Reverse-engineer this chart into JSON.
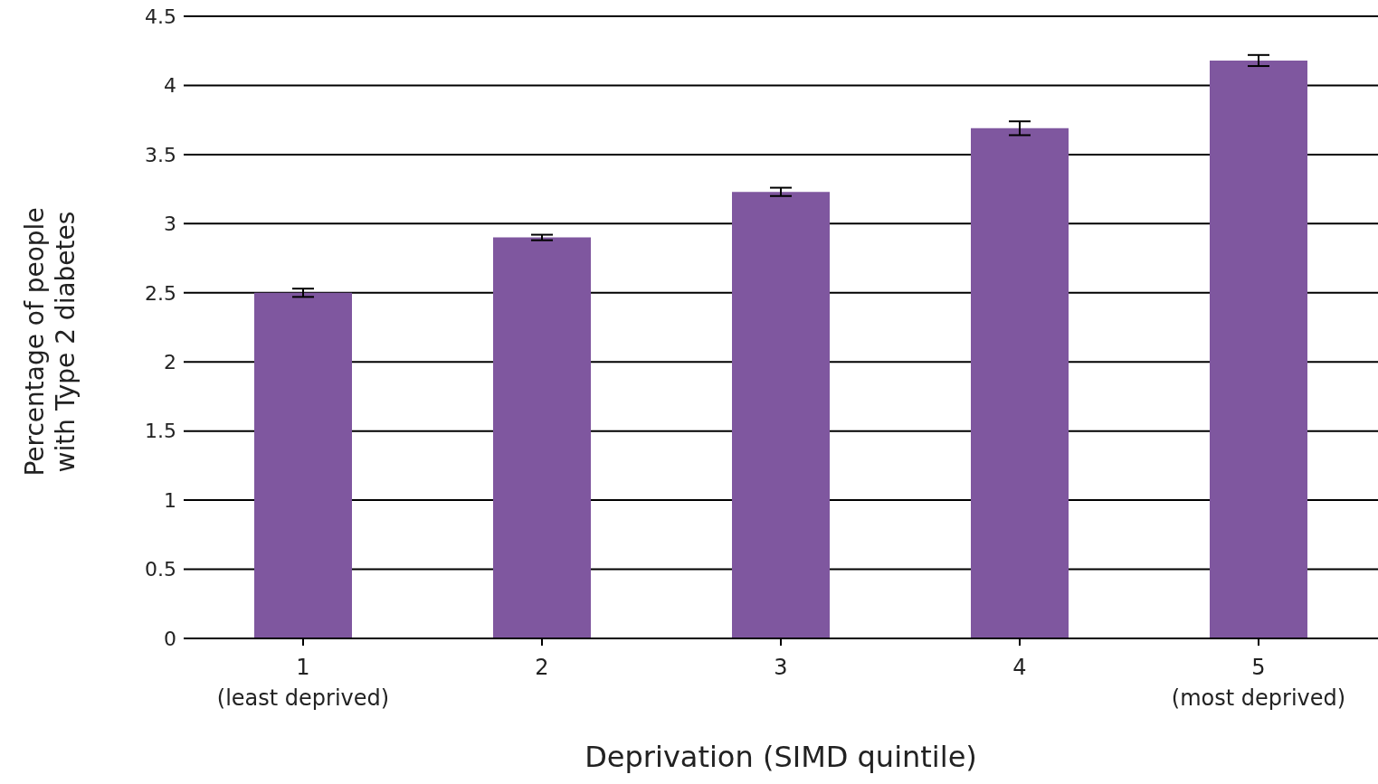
{
  "chart_data": {
    "type": "bar",
    "xlabel": "Deprivation (SIMD quintile)",
    "ylabel": "Percentage of people\nwith Type 2 diabetes",
    "categories": [
      "1\n(least deprived)",
      "2",
      "3",
      "4",
      "5\n(most deprived)"
    ],
    "values": [
      2.5,
      2.9,
      3.23,
      3.69,
      4.18
    ],
    "errors": [
      0.03,
      0.02,
      0.03,
      0.05,
      0.04
    ],
    "color": "#7f579f",
    "ylim": [
      0,
      4.5
    ],
    "yticks": [
      0,
      0.5,
      1,
      1.5,
      2,
      2.5,
      3,
      3.5,
      4,
      4.5
    ],
    "grid": "y",
    "legend": false
  }
}
